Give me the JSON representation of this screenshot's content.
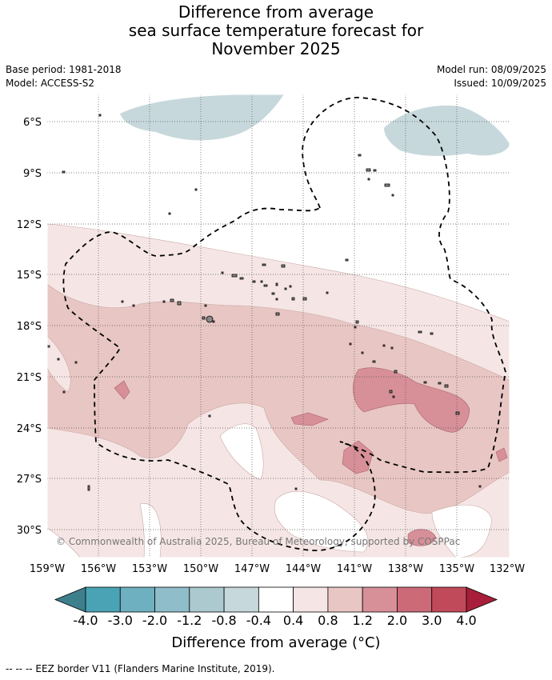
{
  "title": {
    "line1": "Difference from average",
    "line2": "sea surface temperature forecast for",
    "line3": "November 2025"
  },
  "meta": {
    "base_period": "Base period: 1981-2018",
    "model": "Model: ACCESS-S2",
    "model_run": "Model run: 08/09/2025",
    "issued": "Issued: 10/09/2025"
  },
  "map": {
    "copyright": "© Commonwealth of Australia 2025, Bureau of Meteorology, supported by COSPPac",
    "lat_labels": [
      "6°S",
      "9°S",
      "12°S",
      "15°S",
      "18°S",
      "21°S",
      "24°S",
      "27°S",
      "30°S"
    ],
    "lon_labels": [
      "159°W",
      "156°W",
      "153°W",
      "150°W",
      "147°W",
      "144°W",
      "141°W",
      "138°W",
      "135°W",
      "132°W"
    ]
  },
  "colorbar": {
    "ticks": [
      "-4.0",
      "-3.0",
      "-2.0",
      "-1.2",
      "-0.8",
      "-0.4",
      "0.4",
      "0.8",
      "1.2",
      "2.0",
      "3.0",
      "4.0"
    ],
    "colors": [
      "#3e7f8c",
      "#4aa3b5",
      "#6fb0c0",
      "#8fbdc9",
      "#adc9d0",
      "#c7d8dc",
      "#ffffff",
      "#f5e6e5",
      "#e8c6c3",
      "#d78f98",
      "#cd6a78",
      "#c14a5a",
      "#a81e3a"
    ],
    "label": "Difference from average (°C)"
  },
  "footnote": "--  --  -- EEZ border V11 (Flanders Marine Institute, 2019)."
}
